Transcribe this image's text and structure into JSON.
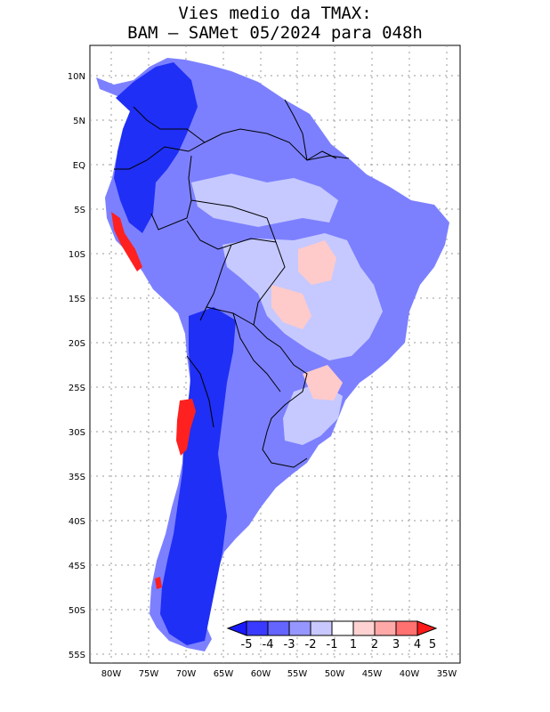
{
  "title": {
    "line1": "Vies medio da TMAX:",
    "line2": "BAM – SAMet 05/2024  para 048h"
  },
  "axes": {
    "lat_labels": [
      "10N",
      "5N",
      "EQ",
      "5S",
      "10S",
      "15S",
      "20S",
      "25S",
      "30S",
      "35S",
      "40S",
      "45S",
      "50S",
      "55S"
    ],
    "lon_labels": [
      "80W",
      "75W",
      "70W",
      "65W",
      "60W",
      "55W",
      "50W",
      "45W",
      "40W",
      "35W"
    ]
  },
  "colorbar": {
    "labels": [
      "-5",
      "-4",
      "-3",
      "-2",
      "-1",
      "1",
      "2",
      "3",
      "4",
      "5"
    ],
    "colors": [
      "#1a1aff",
      "#3a3aff",
      "#6464ff",
      "#9696ff",
      "#c8c8ff",
      "#ffffff",
      "#ffd2d2",
      "#ffa8a8",
      "#ff7070",
      "#ff1a1a"
    ]
  },
  "colors": {
    "deep_blue": "#1f2ff5",
    "mid_blue": "#6f74ff",
    "light_blue": "#c9ccff",
    "pink": "#ffcaca",
    "red": "#ff2020"
  }
}
